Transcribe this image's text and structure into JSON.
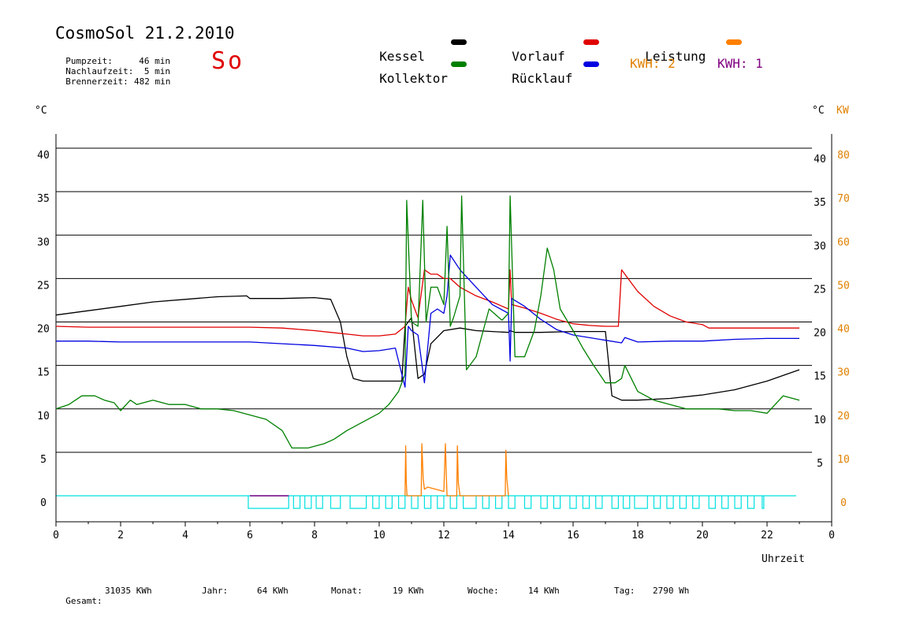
{
  "header": {
    "title": "CosmoSol 21.2.2010",
    "day": "So",
    "info": [
      {
        "label": "Pumpzeit:",
        "value": "46 min"
      },
      {
        "label": "Nachlaufzeit:",
        "value": "5 min"
      },
      {
        "label": "Brennerzeit:",
        "value": "482 min"
      }
    ]
  },
  "legend": {
    "items": [
      {
        "label": "Kessel",
        "color": "#000000"
      },
      {
        "label": "Vorlauf",
        "color": "#e00000"
      },
      {
        "label": "Leistung",
        "color": "#ff8000"
      },
      {
        "label": "Kollektor",
        "color": "#008000"
      },
      {
        "label": "Rücklauf",
        "color": "#0000e0"
      }
    ],
    "kwh": [
      {
        "text": "KWH: 2",
        "color": "#e08000"
      },
      {
        "text": "KWH: 1",
        "color": "#800080"
      }
    ]
  },
  "axes": {
    "left_unit": "°C",
    "right_unit_c": "°C",
    "right_unit_kw": "KW",
    "xlabel": "Uhrzeit"
  },
  "footer": [
    {
      "label": "Gesamt:",
      "value": "31035 KWh"
    },
    {
      "label": "Jahr:",
      "value": "64 KWh"
    },
    {
      "label": "Monat:",
      "value": "19 KWh"
    },
    {
      "label": "Woche:",
      "value": "14 KWh"
    },
    {
      "label": "Tag:",
      "value": "2790 Wh"
    }
  ],
  "chart_data": {
    "type": "line",
    "title": "CosmoSol 21.2.2010",
    "xlabel": "Uhrzeit",
    "ylabel": "°C",
    "y2label": "KW",
    "xlim": [
      0,
      24
    ],
    "ylim": [
      0,
      40
    ],
    "x_ticks": [
      "0",
      "2",
      "4",
      "6",
      "8",
      "10",
      "12",
      "14",
      "16",
      "18",
      "20",
      "22",
      "0"
    ],
    "y_ticks": [
      "0",
      "5",
      "10",
      "15",
      "20",
      "25",
      "30",
      "35",
      "40"
    ],
    "y_ticks_right_c": [
      "5",
      "10",
      "15",
      "20",
      "25",
      "30",
      "35",
      "40"
    ],
    "y2_ticks": [
      "0",
      "10",
      "20",
      "30",
      "40",
      "50",
      "60",
      "70",
      "80"
    ],
    "grid": true,
    "legend_position": "top",
    "series": [
      {
        "name": "Kessel",
        "color": "#000000",
        "x": [
          0,
          1,
          2,
          3,
          4,
          5,
          5.9,
          6,
          7,
          8,
          8.5,
          8.8,
          9,
          9.2,
          9.5,
          10,
          10.5,
          10.7,
          10.8,
          11,
          11.2,
          11.4,
          11.6,
          12,
          12.5,
          13,
          13.5,
          14,
          14.05,
          14.2,
          15,
          16,
          17,
          17.2,
          17.5,
          18,
          19,
          20,
          21,
          22,
          23
        ],
        "y": [
          20.8,
          21.3,
          21.8,
          22.3,
          22.6,
          22.9,
          23,
          22.7,
          22.7,
          22.8,
          22.6,
          20,
          16,
          13.5,
          13.2,
          13.2,
          13.2,
          13.2,
          19.5,
          20.5,
          13.5,
          14,
          17.5,
          19,
          19.3,
          19,
          18.9,
          18.8,
          19,
          18.8,
          18.8,
          18.9,
          18.9,
          11.5,
          11,
          11,
          11.2,
          11.6,
          12.2,
          13.2,
          14.5
        ]
      },
      {
        "name": "Vorlauf",
        "color": "#e00000",
        "x": [
          0,
          1,
          2,
          3,
          4,
          5,
          6,
          7,
          8,
          8.5,
          9,
          9.5,
          10,
          10.5,
          10.8,
          10.9,
          11,
          11.2,
          11.4,
          11.6,
          11.8,
          12,
          12.2,
          12.5,
          13,
          13.5,
          14,
          14.05,
          14.1,
          14.5,
          15,
          15.5,
          16,
          16.5,
          17,
          17.4,
          17.5,
          17.7,
          18,
          18.5,
          19,
          19.5,
          20,
          20.2,
          21,
          22,
          23
        ],
        "y": [
          19.5,
          19.4,
          19.4,
          19.4,
          19.4,
          19.4,
          19.4,
          19.3,
          19,
          18.8,
          18.6,
          18.4,
          18.4,
          18.6,
          19.5,
          24,
          22.5,
          20.5,
          26,
          25.5,
          25.5,
          25,
          25,
          24,
          23,
          22.3,
          21.5,
          26,
          22,
          21.6,
          21,
          20.3,
          19.8,
          19.6,
          19.5,
          19.5,
          26,
          25,
          23.5,
          21.8,
          20.7,
          20,
          19.7,
          19.3,
          19.3,
          19.3,
          19.3
        ]
      },
      {
        "name": "Rücklauf",
        "color": "#0000e0",
        "x": [
          0,
          1,
          2,
          3,
          4,
          5,
          6,
          7,
          8,
          9,
          9.5,
          10,
          10.5,
          10.8,
          10.9,
          11,
          11.2,
          11.4,
          11.6,
          11.8,
          12,
          12.1,
          12.2,
          12.5,
          13,
          13.5,
          14,
          14.05,
          14.1,
          14.5,
          15,
          15.5,
          16,
          17,
          17.5,
          17.6,
          18,
          19,
          20,
          21,
          22,
          23
        ],
        "y": [
          17.8,
          17.8,
          17.7,
          17.7,
          17.7,
          17.7,
          17.7,
          17.5,
          17.3,
          17,
          16.6,
          16.7,
          17,
          12.5,
          19.5,
          19,
          18.5,
          13,
          21,
          21.5,
          21,
          23,
          27.7,
          26,
          24,
          22,
          21,
          15.5,
          22.7,
          21.8,
          20.3,
          19.1,
          18.5,
          17.9,
          17.6,
          18.2,
          17.7,
          17.8,
          17.8,
          18,
          18.1,
          18.1
        ]
      },
      {
        "name": "Kollektor",
        "color": "#008000",
        "x": [
          0,
          0.4,
          0.8,
          1.2,
          1.5,
          1.8,
          2,
          2.3,
          2.5,
          3,
          3.5,
          4,
          4.5,
          5,
          5.5,
          6,
          6.5,
          7,
          7.3,
          7.8,
          8.3,
          8.6,
          9,
          9.5,
          10,
          10.3,
          10.6,
          10.8,
          10.85,
          11,
          11.2,
          11.35,
          11.45,
          11.6,
          11.8,
          12,
          12.1,
          12.2,
          12.3,
          12.5,
          12.55,
          12.7,
          13,
          13.4,
          13.8,
          14,
          14.05,
          14.2,
          14.5,
          14.8,
          15,
          15.2,
          15.4,
          15.6,
          16,
          16.3,
          16.6,
          17,
          17.3,
          17.5,
          17.6,
          18,
          18.5,
          19,
          19.5,
          20,
          20.5,
          21,
          21.5,
          22,
          22.5,
          23
        ],
        "y": [
          10,
          10.5,
          11.5,
          11.5,
          11,
          10.7,
          9.8,
          11,
          10.5,
          11,
          10.5,
          10.5,
          10,
          10,
          9.8,
          9.3,
          8.8,
          7.5,
          5.5,
          5.5,
          6,
          6.5,
          7.5,
          8.5,
          9.5,
          10.5,
          12,
          14,
          34,
          20,
          19.5,
          34,
          20,
          24,
          24,
          22,
          31,
          19.5,
          20.5,
          23,
          34.5,
          14.5,
          16,
          21.5,
          20.2,
          21,
          34.5,
          16,
          16,
          19,
          23,
          28.5,
          26,
          21.5,
          19,
          17,
          15.2,
          13,
          13,
          13.5,
          15,
          12,
          11,
          10.5,
          10,
          10,
          10,
          9.8,
          9.8,
          9.5,
          11.5,
          11
        ]
      },
      {
        "name": "Leistung",
        "color": "#ff8000",
        "x": [
          10.8,
          10.82,
          10.84,
          10.86,
          10.9,
          11.3,
          11.32,
          11.36,
          11.4,
          11.5,
          12,
          12.05,
          12.08,
          12.1,
          12.4,
          12.42,
          12.45,
          12.5,
          13.9,
          13.92,
          13.95,
          14
        ],
        "y": [
          0,
          11.5,
          3,
          0,
          0,
          0,
          12,
          4,
          1.5,
          2,
          1,
          12,
          4,
          0,
          0,
          11.5,
          3,
          0,
          0,
          10.5,
          4,
          0
        ]
      }
    ]
  }
}
